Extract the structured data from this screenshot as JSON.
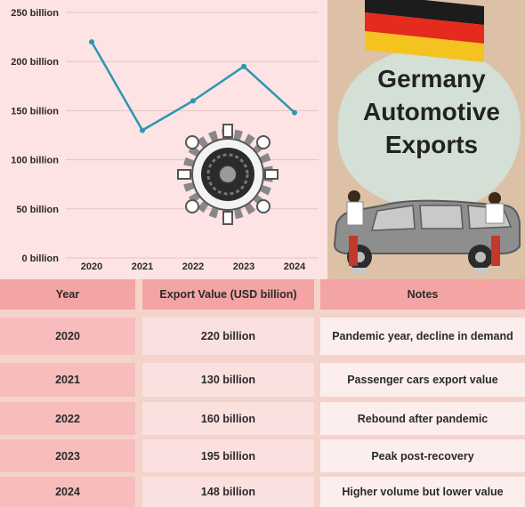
{
  "headline": [
    "Germany",
    "Automotive",
    "Exports"
  ],
  "chart_data": {
    "type": "line",
    "x": [
      "2020",
      "2021",
      "2022",
      "2023",
      "2024"
    ],
    "values": [
      220,
      130,
      160,
      195,
      148
    ],
    "y_ticks": [
      "0 billion",
      "50 billion",
      "100 billion",
      "150 billion",
      "200 billion",
      "250 billion"
    ],
    "ylim": [
      0,
      250
    ],
    "grid": true,
    "line_color": "#2a97b4"
  },
  "table": {
    "headers": [
      "Year",
      "Export Value (USD billion)",
      "Notes"
    ],
    "rows": [
      [
        "2020",
        "220 billion",
        "Pandemic year, decline in demand"
      ],
      [
        "2021",
        "130 billion",
        "Passenger cars export value"
      ],
      [
        "2022",
        "160 billion",
        "Rebound after pandemic"
      ],
      [
        "2023",
        "195 billion",
        "Peak post-recovery"
      ],
      [
        "2024",
        "148 billion",
        "Higher volume but lower value"
      ]
    ]
  },
  "colors": {
    "flag": [
      "#1c1c1c",
      "#e42b1e",
      "#f4c320"
    ],
    "header_bg": "#f4a4a4"
  },
  "icons": [
    "gear-wheel-icon",
    "car-mechanics-illustration",
    "germany-flag"
  ]
}
